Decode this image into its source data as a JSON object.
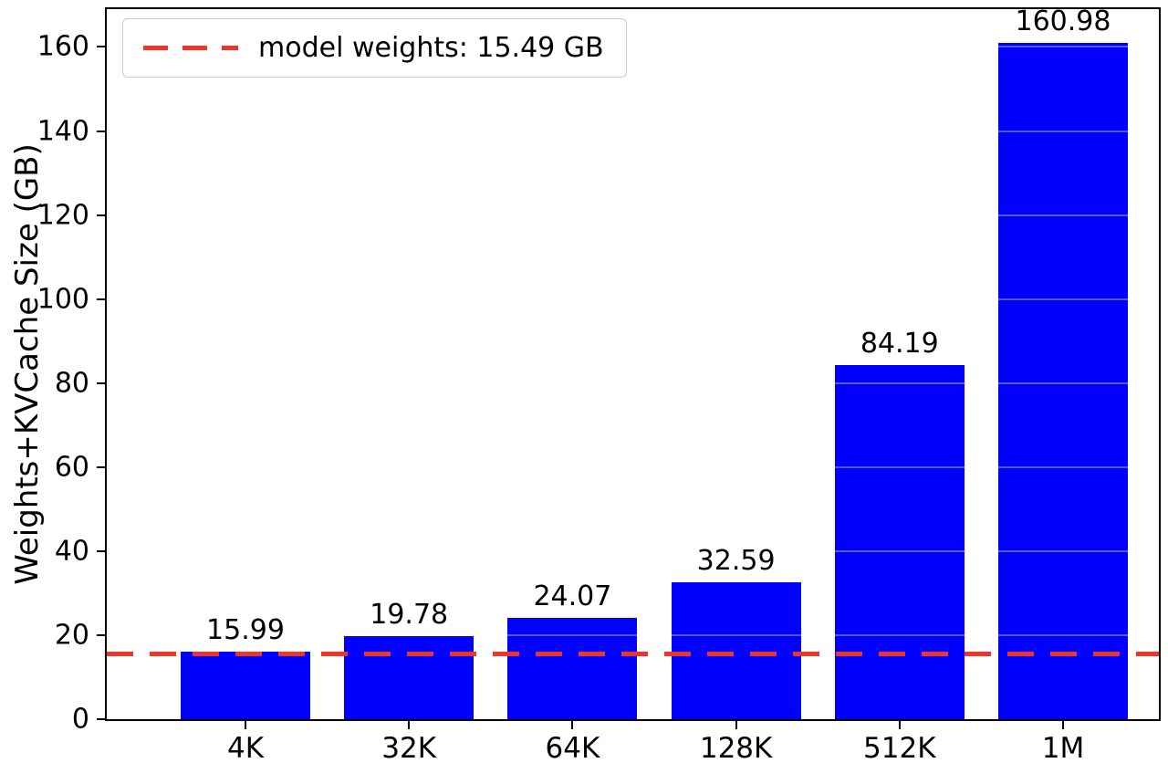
{
  "chart_data": {
    "type": "bar",
    "title": "",
    "xlabel": "",
    "ylabel": "Weights+KVCache Size (GB)",
    "categories": [
      "4K",
      "32K",
      "64K",
      "128K",
      "512K",
      "1M"
    ],
    "values": [
      15.99,
      19.78,
      24.07,
      32.59,
      84.19,
      160.98
    ],
    "bar_labels": [
      "15.99",
      "19.78",
      "24.07",
      "32.59",
      "84.19",
      "160.98"
    ],
    "bar_color": "#0000ff",
    "yticks": [
      0,
      20,
      40,
      60,
      80,
      100,
      120,
      140,
      160
    ],
    "ytick_labels": [
      "0",
      "20",
      "40",
      "60",
      "80",
      "100",
      "120",
      "140",
      "160"
    ],
    "ylim": [
      0,
      169
    ],
    "grid": false,
    "legend_position": "upper left",
    "reference_line": {
      "value": 15.49,
      "label": "model weights: 15.49 GB",
      "color": "#ee352a",
      "style": "dashed"
    }
  }
}
